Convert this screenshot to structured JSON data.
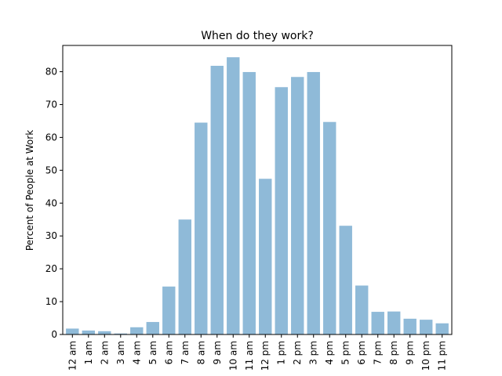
{
  "chart_data": {
    "type": "bar",
    "title": "When do they work?",
    "xlabel": "",
    "ylabel": "Percent of People at Work",
    "categories": [
      "12 am",
      "1 am",
      "2 am",
      "3 am",
      "4 am",
      "5 am",
      "6 am",
      "7 am",
      "8 am",
      "9 am",
      "10 am",
      "11 am",
      "12 pm",
      "1 pm",
      "2 pm",
      "3 pm",
      "4 pm",
      "5 pm",
      "6 pm",
      "7 pm",
      "8 pm",
      "9 pm",
      "10 pm",
      "11 pm"
    ],
    "values": [
      1.8,
      1.2,
      1.0,
      0.3,
      2.2,
      3.8,
      14.6,
      35.0,
      64.5,
      81.8,
      84.4,
      79.9,
      47.4,
      75.3,
      78.4,
      79.9,
      64.7,
      33.1,
      14.9,
      6.9,
      7.0,
      4.8,
      4.5,
      3.4
    ],
    "ylim": [
      0,
      88
    ],
    "yticks": [
      0,
      10,
      20,
      30,
      40,
      50,
      60,
      70,
      80
    ],
    "bar_color": "#8fbad8",
    "bar_alpha": 1,
    "grid": false,
    "legend": "none"
  }
}
